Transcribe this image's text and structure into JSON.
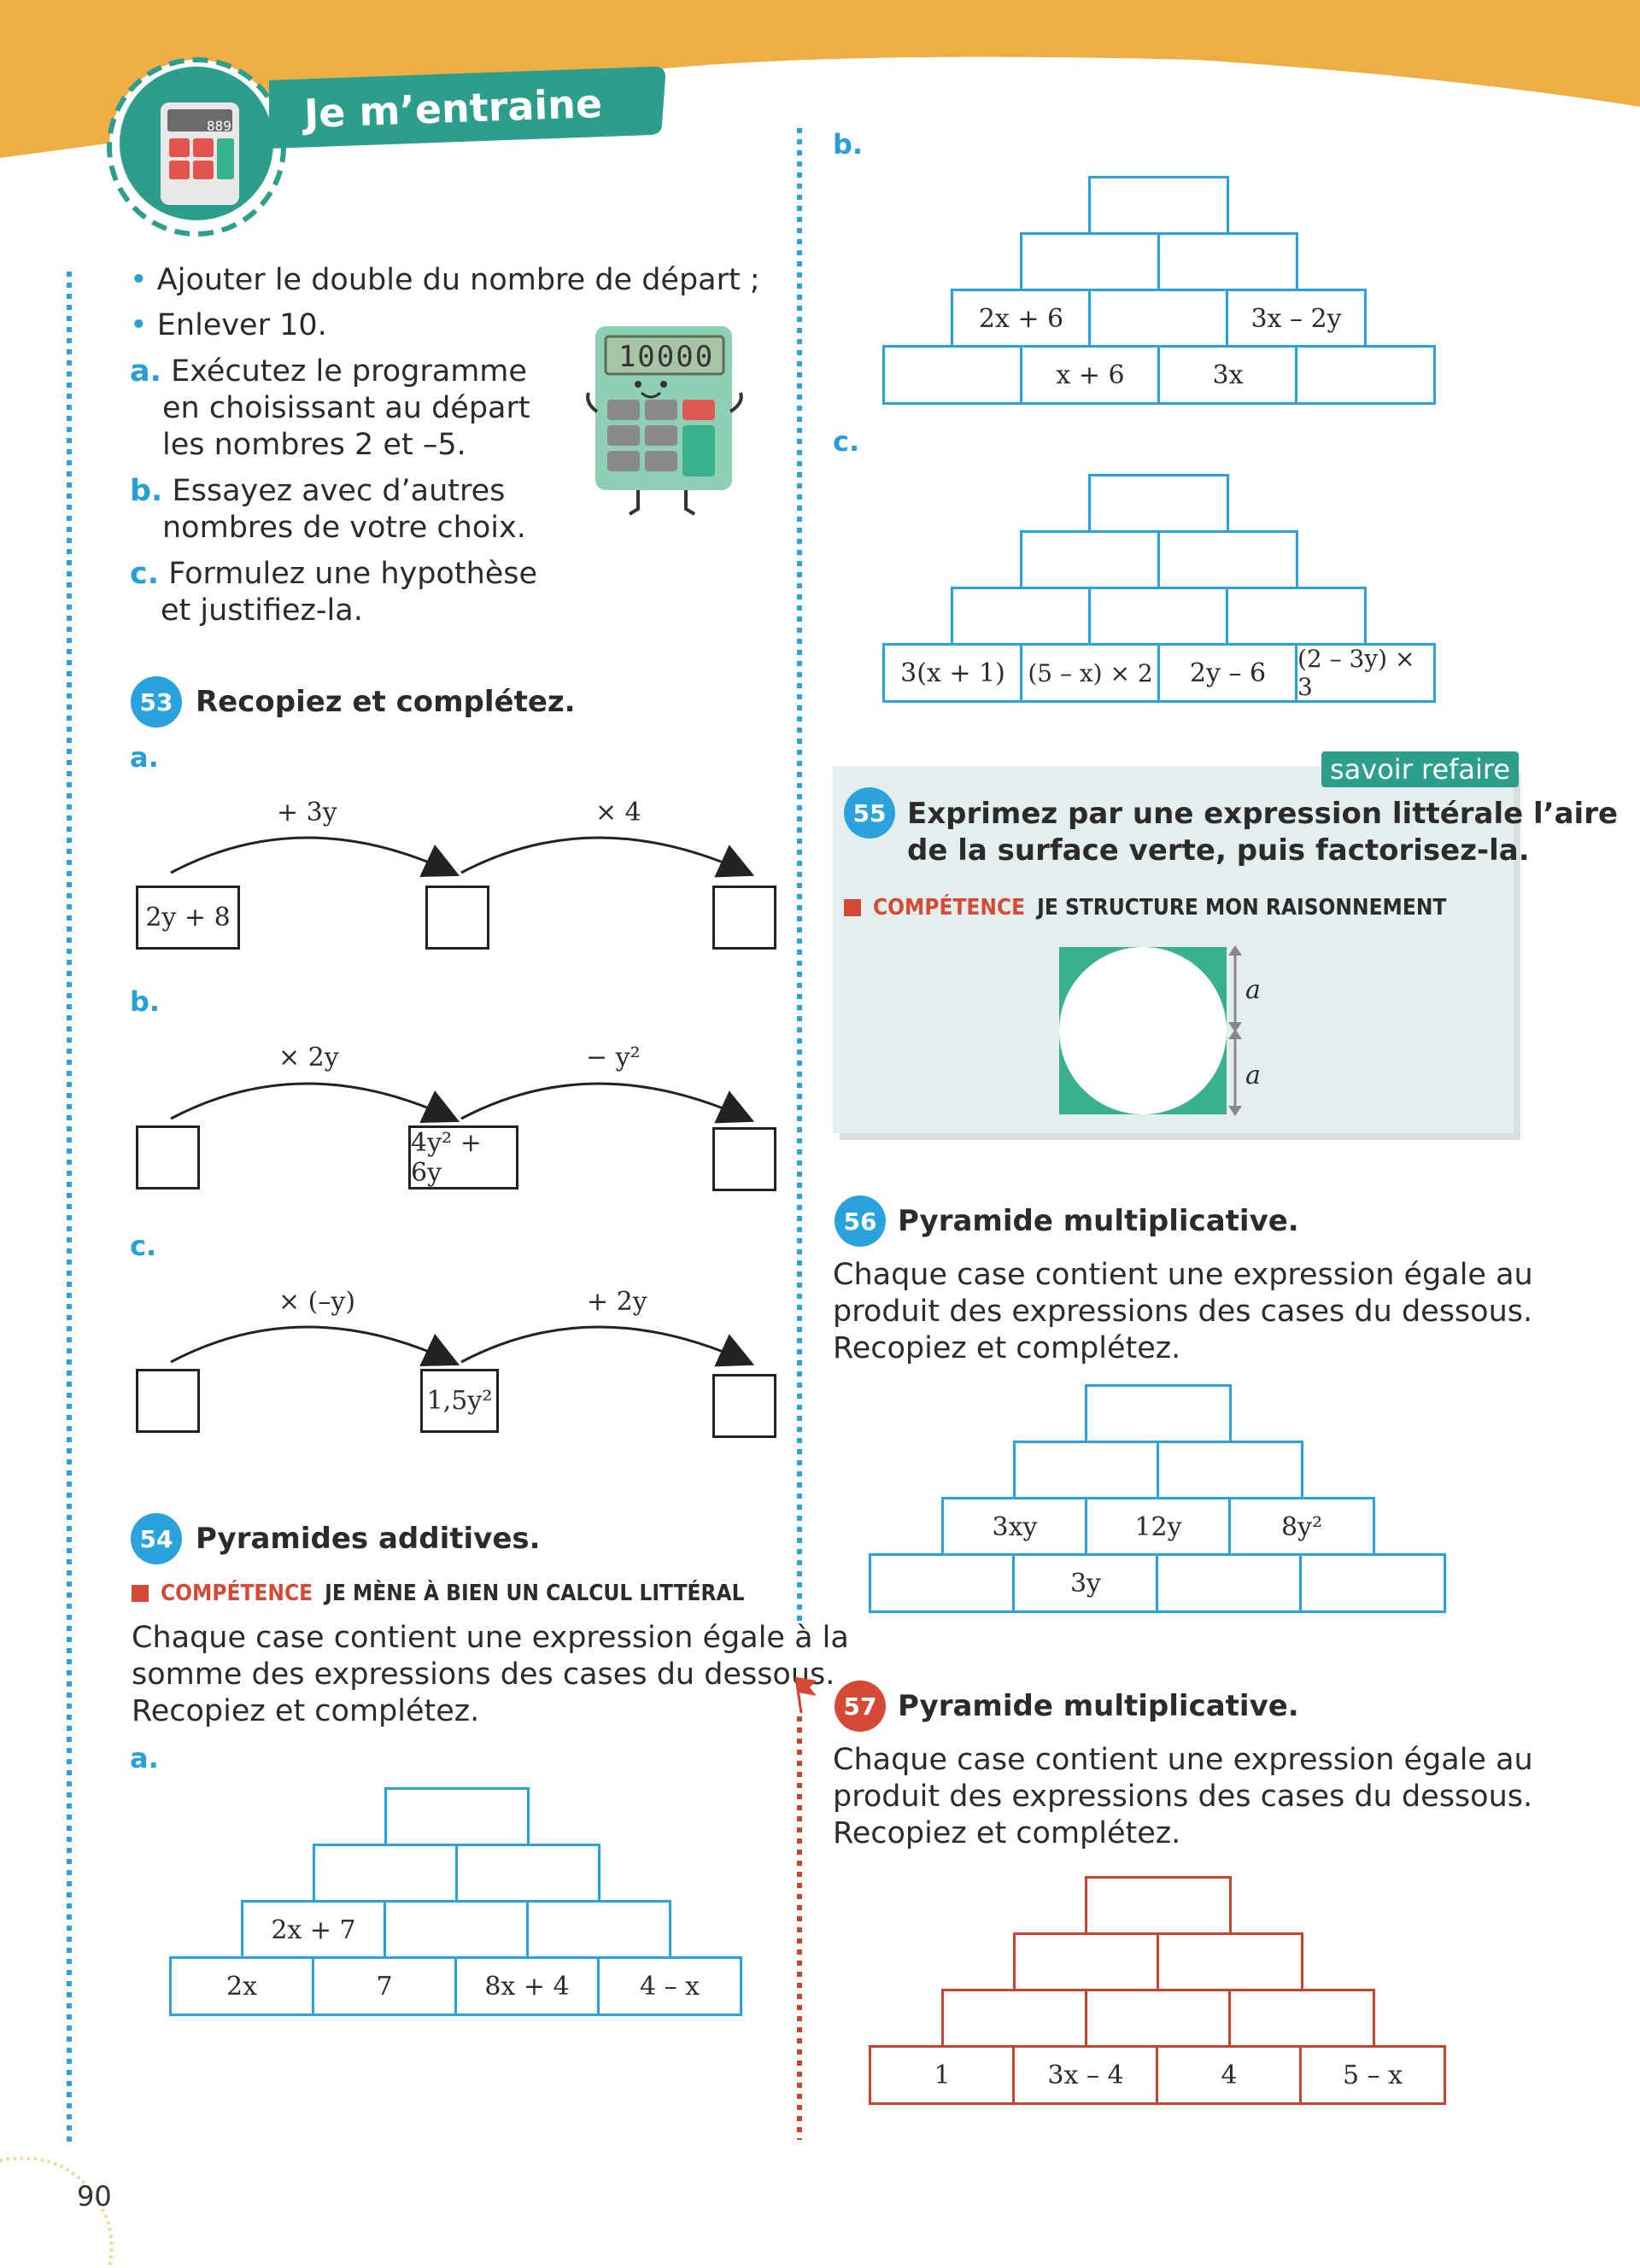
{
  "header": {
    "title": "Je m’entraine",
    "calc_display": "889"
  },
  "intro": {
    "bullet1": "Ajouter le double du nombre de départ ;",
    "bullet2": "Enlever 10.",
    "a_label": "a.",
    "a_line1": "Exécutez le programme",
    "a_line2": "en choisissant au départ",
    "a_line3": "les nombres 2 et –5.",
    "b_label": "b.",
    "b_line1": "Essayez avec d’autres",
    "b_line2": "nombres de votre choix.",
    "c_label": "c.",
    "c_line1": "Formulez une hypothèse",
    "c_line2": "et justifiez-la.",
    "calc_screen": "10000"
  },
  "ex53": {
    "number": "53",
    "title": "Recopiez et complétez.",
    "a": {
      "label": "a.",
      "op1": "+ 3y",
      "op2": "× 4",
      "start": "2y + 8"
    },
    "b": {
      "label": "b.",
      "op1": "× 2y",
      "op2": "− y²",
      "middle": "4y² + 6y"
    },
    "c": {
      "label": "c.",
      "op1": "× (–y)",
      "op2": "+ 2y",
      "middle": "1,5y²"
    }
  },
  "ex54": {
    "number": "54",
    "title": "Pyramides additives.",
    "competence_label": "COMPÉTENCE",
    "competence_text": "JE MÈNE À BIEN UN CALCUL LITTÉRAL",
    "line1": "Chaque case contient une expression égale à la",
    "line2": "somme des expressions des cases du dessous.",
    "line3": "Recopiez et complétez.",
    "a": {
      "label": "a.",
      "row3_0": "2x + 7",
      "row4": [
        "2x",
        "7",
        "8x + 4",
        "4 – x"
      ]
    },
    "b": {
      "label": "b.",
      "row3_0": "2x + 6",
      "row3_2": "3x – 2y",
      "row4_1": "x + 6",
      "row4_2": "3x"
    },
    "c": {
      "label": "c.",
      "row4": [
        "3(x + 1)",
        "(5 – x) × 2",
        "2y – 6",
        "(2 – 3y) × 3"
      ]
    }
  },
  "ex55": {
    "number": "55",
    "tag": "savoir refaire",
    "title_line1": "Exprimez par une expression littérale l’aire",
    "title_line2": "de la surface verte, puis factorisez-la.",
    "competence_label": "COMPÉTENCE",
    "competence_text": "JE STRUCTURE MON RAISONNEMENT",
    "dim_top": "a",
    "dim_bottom": "a"
  },
  "ex56": {
    "number": "56",
    "title": "Pyramide multiplicative.",
    "line1": "Chaque case contient une expression égale au",
    "line2": "produit des expressions des cases du dessous.",
    "line3": "Recopiez et complétez.",
    "row3": [
      "3xy",
      "12y",
      "8y²"
    ],
    "row4_1": "3y"
  },
  "ex57": {
    "number": "57",
    "title": "Pyramide multiplicative.",
    "line1": "Chaque case contient une expression égale au",
    "line2": "produit des expressions des cases du dessous.",
    "line3": "Recopiez et complétez.",
    "row4": [
      "1",
      "3x – 4",
      "4",
      "5 – x"
    ]
  },
  "footer": {
    "page_number": "90"
  },
  "colors": {
    "accent_blue": "#2aa3dd",
    "accent_red": "#c9442f",
    "banner_orange": "#eeae46",
    "teal": "#2e9e8c"
  }
}
